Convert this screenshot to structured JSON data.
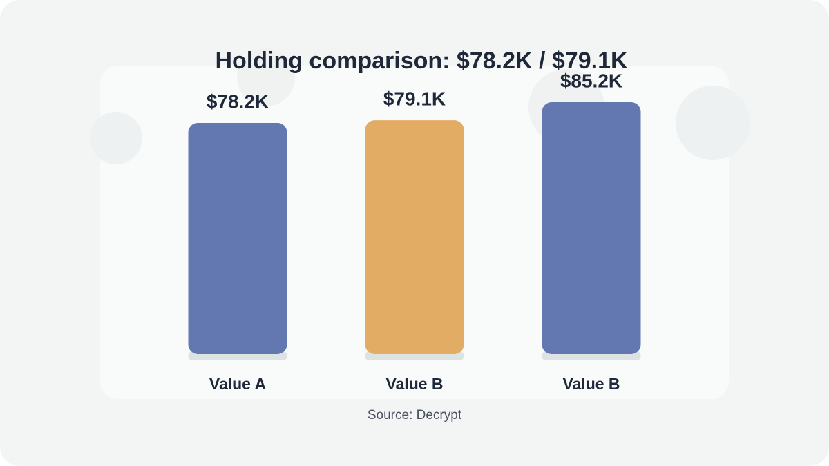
{
  "chart_data": {
    "type": "bar",
    "title": "Holding comparison: $78.2K / $79.1K",
    "categories": [
      "Value A",
      "Value B",
      "Value B"
    ],
    "values": [
      78.2,
      79.1,
      85.2
    ],
    "value_labels": [
      "$78.2K",
      "$79.1K",
      "$85.2K"
    ],
    "colors": [
      "#6378b0",
      "#e2ac64",
      "#6378b0"
    ],
    "source": "Source: Decrypt"
  }
}
